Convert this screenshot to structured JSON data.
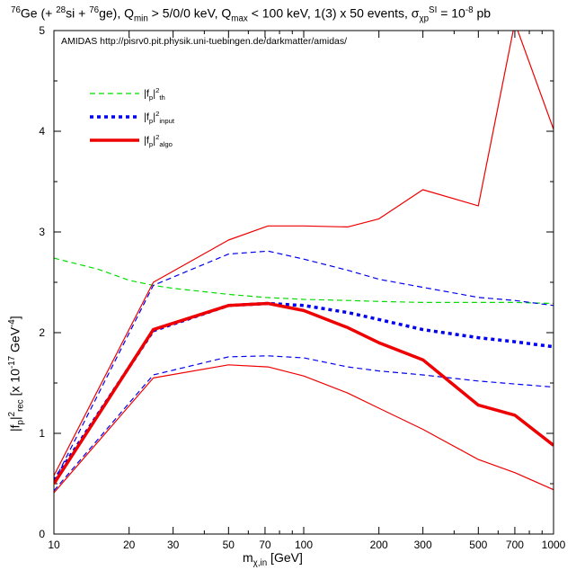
{
  "title_parts": {
    "iso1": "76",
    "t1": "Ge (+ ",
    "iso2": "28",
    "t2": "si + ",
    "iso3": "76",
    "t3": "ge), Q",
    "qmin_sub": "min",
    "t4": " > 5/0/0 keV, Q",
    "qmax_sub": "max",
    "t5": " < 100 keV, 1(3) x 50 events, σ",
    "sigma_sub": "χp",
    "sigma_sup": "SI",
    "t6": " = 10",
    "exp": "-8",
    "t7": " pb"
  },
  "credit": "AMIDAS   http://pisrv0.pit.physik.uni-tuebingen.de/darkmatter/amidas/",
  "legend": [
    {
      "pre": "|f",
      "sub1": "p",
      "mid": "|",
      "sup": "2",
      "sub2": "th",
      "color": "#00dd00",
      "style": "dashed-thin"
    },
    {
      "pre": "|f",
      "sub1": "p",
      "mid": "|",
      "sup": "2",
      "sub2": "input",
      "color": "#0000ee",
      "style": "dotted-thick"
    },
    {
      "pre": "|f",
      "sub1": "p",
      "mid": "|",
      "sup": "2",
      "sub2": "algo",
      "color": "#ee0000",
      "style": "solid-thick"
    }
  ],
  "axes": {
    "xlabel": {
      "m": "m",
      "sub": "χ,in",
      "rest": " [GeV]"
    },
    "ylabel": {
      "a": "|f",
      "b": "p",
      "c": "|",
      "d": "2",
      "e": "rec",
      "f": "  [x 10",
      "g": "-17",
      "h": " GeV",
      "i": "-4",
      "j": "]"
    }
  },
  "chart_data": {
    "type": "line",
    "x_scale": "log",
    "xlim": [
      10,
      1000
    ],
    "ylim": [
      0,
      5
    ],
    "x_ticks": [
      10,
      20,
      30,
      50,
      70,
      100,
      200,
      300,
      500,
      700,
      1000
    ],
    "x_tick_labels": [
      "10",
      "20",
      "30",
      "50",
      "70",
      "100",
      "200",
      "300",
      "500",
      "700",
      "1000"
    ],
    "y_ticks": [
      0,
      1,
      2,
      3,
      4,
      5
    ],
    "y_tick_labels": [
      "0",
      "1",
      "2",
      "3",
      "4",
      "5"
    ],
    "series": [
      {
        "name": "|fp|2 th",
        "color": "#00dd00",
        "style": "dashed-thin",
        "x": [
          10,
          15,
          20,
          25,
          30,
          50,
          70,
          100,
          150,
          200,
          300,
          500,
          700,
          1000
        ],
        "y": [
          2.74,
          2.63,
          2.52,
          2.47,
          2.44,
          2.38,
          2.35,
          2.33,
          2.32,
          2.31,
          2.3,
          2.3,
          2.3,
          2.29
        ]
      },
      {
        "name": "input upper",
        "color": "#0000ee",
        "style": "dashed-thin",
        "x": [
          10,
          25,
          50,
          72,
          100,
          150,
          200,
          300,
          500,
          700,
          1000
        ],
        "y": [
          0.52,
          2.47,
          2.78,
          2.81,
          2.73,
          2.62,
          2.53,
          2.45,
          2.35,
          2.32,
          2.27
        ]
      },
      {
        "name": "input lower",
        "color": "#0000ee",
        "style": "dashed-thin",
        "x": [
          10,
          25,
          50,
          72,
          100,
          150,
          200,
          300,
          500,
          700,
          1000
        ],
        "y": [
          0.43,
          1.58,
          1.76,
          1.77,
          1.75,
          1.66,
          1.62,
          1.58,
          1.52,
          1.49,
          1.46
        ]
      },
      {
        "name": "|fp|2 input",
        "color": "#0000ee",
        "style": "dotted-thick",
        "x": [
          10,
          25,
          50,
          72,
          100,
          150,
          200,
          300,
          500,
          700,
          1000
        ],
        "y": [
          0.53,
          2.02,
          2.27,
          2.29,
          2.27,
          2.2,
          2.13,
          2.03,
          1.95,
          1.91,
          1.86
        ]
      },
      {
        "name": "algo upper",
        "color": "#ee0000",
        "style": "solid-thin",
        "x": [
          10,
          25,
          50,
          72,
          100,
          150,
          200,
          300,
          500,
          700,
          1000
        ],
        "y": [
          0.58,
          2.5,
          2.92,
          3.06,
          3.06,
          3.05,
          3.13,
          3.42,
          3.26,
          5.08,
          4.02
        ]
      },
      {
        "name": "algo lower",
        "color": "#ee0000",
        "style": "solid-thin",
        "x": [
          10,
          25,
          50,
          72,
          100,
          150,
          200,
          300,
          500,
          700,
          1000
        ],
        "y": [
          0.41,
          1.55,
          1.68,
          1.66,
          1.57,
          1.4,
          1.25,
          1.04,
          0.74,
          0.61,
          0.44
        ]
      },
      {
        "name": "|fp|2 algo",
        "color": "#ee0000",
        "style": "solid-thick",
        "x": [
          10,
          25,
          50,
          72,
          100,
          150,
          200,
          300,
          500,
          700,
          1000
        ],
        "y": [
          0.5,
          2.03,
          2.27,
          2.29,
          2.22,
          2.05,
          1.9,
          1.73,
          1.28,
          1.18,
          0.88
        ]
      }
    ]
  }
}
